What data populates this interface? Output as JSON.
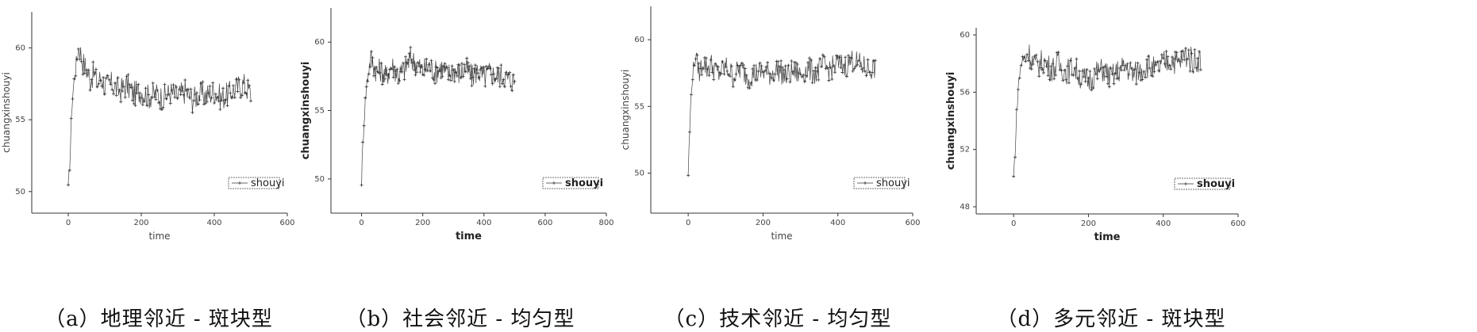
{
  "chart_data": [
    {
      "type": "line",
      "caption": "（a）地理邻近 - 斑块型",
      "xlabel": "time",
      "ylabel": "chuangxinshouyi",
      "xlim": [
        -100,
        600
      ],
      "ylim": [
        48.5,
        62.5
      ],
      "xticks": [
        0,
        200,
        400,
        600
      ],
      "yticks": [
        50,
        55,
        60
      ],
      "ytick_labels": [
        "50",
        "55",
        "60"
      ],
      "legend_position": "bottom-right",
      "bold": false,
      "series": [
        {
          "name": "shouyi",
          "x": [
            0,
            5,
            10,
            15,
            20,
            25,
            30,
            35,
            40,
            50,
            60,
            70,
            80,
            90,
            100,
            120,
            140,
            160,
            180,
            200,
            220,
            240,
            260,
            280,
            300,
            320,
            340,
            360,
            380,
            400,
            420,
            440,
            460,
            480,
            500
          ],
          "values": [
            50.0,
            52.5,
            56.0,
            57.5,
            58.5,
            59.5,
            60.2,
            59.5,
            59.0,
            58.5,
            57.8,
            58.2,
            57.5,
            58.0,
            57.3,
            57.5,
            57.0,
            57.4,
            56.8,
            57.0,
            56.6,
            56.8,
            56.5,
            56.9,
            56.6,
            57.0,
            56.4,
            56.8,
            56.7,
            57.0,
            56.5,
            56.8,
            57.2,
            57.5,
            56.8
          ]
        }
      ]
    },
    {
      "type": "line",
      "caption": "（b）社会邻近 - 均匀型",
      "xlabel": "time",
      "ylabel": "chuangxinshouyi",
      "xlim": [
        -100,
        800
      ],
      "ylim": [
        47.5,
        62.5
      ],
      "xticks": [
        0,
        200,
        400,
        600,
        800
      ],
      "yticks": [
        50,
        55,
        60
      ],
      "ytick_labels": [
        "50",
        "55",
        "60"
      ],
      "legend_position": "bottom-right",
      "bold": true,
      "series": [
        {
          "name": "shouyi",
          "x": [
            0,
            5,
            10,
            15,
            20,
            25,
            30,
            40,
            50,
            60,
            80,
            100,
            120,
            140,
            160,
            180,
            200,
            220,
            240,
            260,
            280,
            300,
            320,
            340,
            360,
            380,
            400,
            420,
            440,
            460,
            480,
            500
          ],
          "values": [
            50.0,
            53.0,
            55.0,
            56.5,
            57.5,
            58.2,
            58.8,
            58.3,
            57.8,
            58.0,
            57.5,
            58.3,
            57.6,
            58.0,
            58.8,
            58.4,
            57.9,
            58.3,
            57.8,
            58.2,
            57.6,
            58.0,
            57.7,
            58.1,
            57.5,
            57.9,
            57.4,
            57.8,
            57.5,
            57.6,
            57.3,
            57.1
          ]
        }
      ]
    },
    {
      "type": "line",
      "caption": "（c）技术邻近 - 均匀型",
      "xlabel": "time",
      "ylabel": "chuangxinshouyi",
      "xlim": [
        -100,
        600
      ],
      "ylim": [
        47,
        62.5
      ],
      "xticks": [
        0,
        200,
        400,
        600
      ],
      "yticks": [
        50,
        55,
        60
      ],
      "ytick_labels": [
        "50",
        "55",
        "60"
      ],
      "legend_position": "bottom-right",
      "bold": false,
      "series": [
        {
          "name": "shouyi",
          "x": [
            0,
            5,
            10,
            15,
            20,
            30,
            40,
            50,
            60,
            80,
            100,
            120,
            140,
            160,
            180,
            200,
            220,
            240,
            260,
            280,
            300,
            320,
            340,
            360,
            380,
            400,
            420,
            440,
            460,
            480,
            500
          ],
          "values": [
            50.0,
            54.0,
            57.0,
            58.0,
            58.8,
            57.5,
            58.5,
            57.8,
            58.2,
            57.4,
            58.0,
            57.3,
            57.8,
            57.2,
            57.5,
            57.6,
            57.4,
            57.8,
            57.2,
            57.6,
            57.4,
            57.8,
            57.5,
            58.0,
            57.8,
            58.2,
            58.0,
            58.5,
            58.1,
            57.8,
            57.9
          ]
        }
      ]
    },
    {
      "type": "line",
      "caption": "（d）多元邻近 - 斑块型",
      "xlabel": "time",
      "ylabel": "chuangxinshouyi",
      "xlim": [
        -100,
        600
      ],
      "ylim": [
        47.5,
        60.5
      ],
      "xticks": [
        0,
        200,
        400,
        600
      ],
      "yticks": [
        48,
        52,
        56,
        60
      ],
      "ytick_labels": [
        "48",
        "52",
        "56",
        "60"
      ],
      "legend_position": "bottom-right",
      "bold": true,
      "series": [
        {
          "name": "shouyi",
          "x": [
            0,
            5,
            10,
            15,
            20,
            30,
            40,
            50,
            60,
            80,
            100,
            120,
            140,
            160,
            180,
            200,
            220,
            240,
            260,
            280,
            300,
            320,
            340,
            360,
            380,
            400,
            420,
            440,
            460,
            480,
            500
          ],
          "values": [
            50.0,
            52.5,
            55.5,
            57.0,
            58.0,
            58.4,
            58.8,
            58.2,
            57.8,
            58.2,
            57.6,
            58.0,
            57.4,
            57.8,
            57.0,
            56.8,
            57.3,
            57.6,
            57.0,
            57.5,
            57.8,
            57.2,
            57.6,
            57.9,
            57.5,
            58.0,
            58.3,
            58.0,
            58.6,
            58.2,
            58.3
          ]
        }
      ]
    }
  ]
}
